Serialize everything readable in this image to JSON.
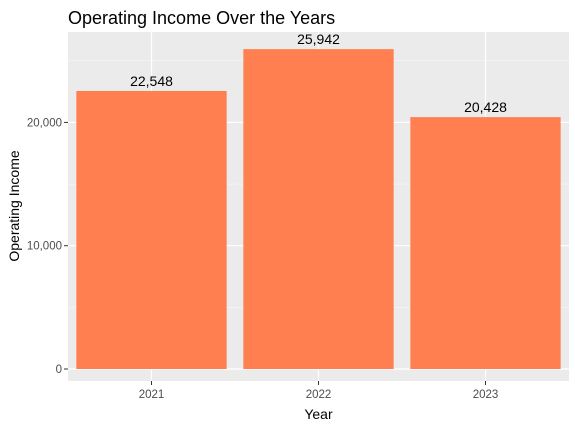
{
  "chart_data": {
    "type": "bar",
    "title": "Operating Income Over the Years",
    "xlabel": "Year",
    "ylabel": "Operating Income",
    "categories": [
      "2021",
      "2022",
      "2023"
    ],
    "values": [
      22548,
      25942,
      20428
    ],
    "value_labels": [
      "22,548",
      "25,942",
      "20,428"
    ],
    "ylim": [
      0,
      27000
    ],
    "yticks": [
      0,
      10000,
      20000
    ],
    "ytick_labels": [
      "0",
      "10,000",
      "20,000"
    ],
    "grid": true,
    "legend": "none",
    "colors": {
      "bar": "#FF7F50",
      "panel_background": "#EBEBEB",
      "grid_major": "#FFFFFF",
      "grid_minor": "#F5F5F5"
    }
  }
}
